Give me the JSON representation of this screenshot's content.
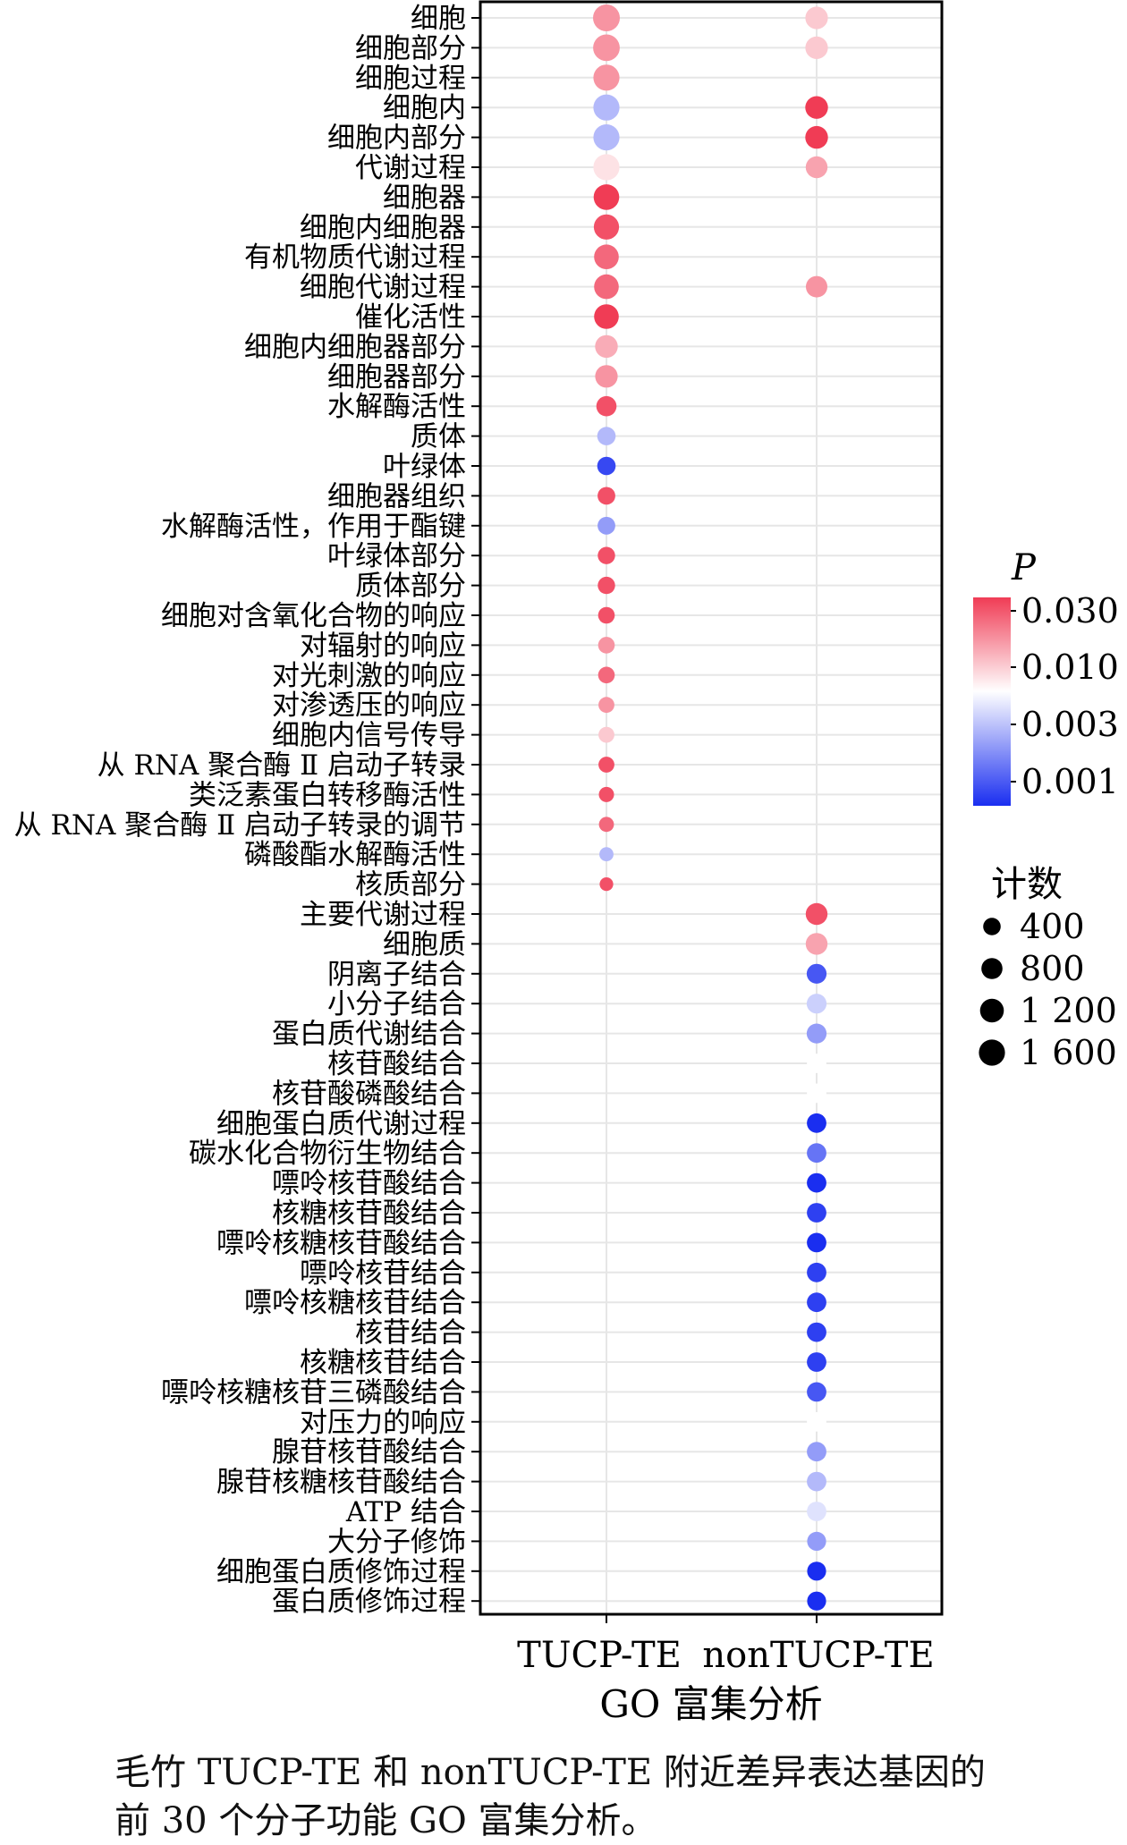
{
  "chart_data": {
    "type": "scatter",
    "title": "",
    "xlabel": "GO 富集分析",
    "ylabel": "",
    "x": [
      "TUCP-TE",
      "nonTUCP-TE"
    ],
    "categories": [
      "细胞",
      "细胞部分",
      "细胞过程",
      "细胞内",
      "细胞内部分",
      "代谢过程",
      "细胞器",
      "细胞内细胞器",
      "有机物质代谢过程",
      "细胞代谢过程",
      "催化活性",
      "细胞内细胞器部分",
      "细胞器部分",
      "水解酶活性",
      "质体",
      "叶绿体",
      "细胞器组织",
      "水解酶活性，作用于酯键",
      "叶绿体部分",
      "质体部分",
      "细胞对含氧化合物的响应",
      "对辐射的响应",
      "对光刺激的响应",
      "对渗透压的响应",
      "细胞内信号传导",
      "从 RNA 聚合酶 Ⅱ 启动子转录",
      "类泛素蛋白转移酶活性",
      "从 RNA 聚合酶 Ⅱ 启动子转录的调节",
      "磷酸酯水解酶活性",
      "核质部分",
      "主要代谢过程",
      "细胞质",
      "阴离子结合",
      "小分子结合",
      "蛋白质代谢结合",
      "核苷酸结合",
      "核苷酸磷酸结合",
      "细胞蛋白质代谢过程",
      "碳水化合物衍生物结合",
      "嘌呤核苷酸结合",
      "核糖核苷酸结合",
      "嘌呤核糖核苷酸结合",
      "嘌呤核苷结合",
      "嘌呤核糖核苷结合",
      "核苷结合",
      "核糖核苷结合",
      "嘌呤核糖核苷三磷酸结合",
      "对压力的响应",
      "腺苷核苷酸结合",
      "腺苷核糖核苷酸结合",
      "ATP 结合",
      "大分子修饰",
      "细胞蛋白质修饰过程",
      "蛋白质修饰过程"
    ],
    "series": [
      {
        "name": "TUCP-TE",
        "counts": [
          1750,
          1700,
          1600,
          1600,
          1600,
          1600,
          1500,
          1450,
          1350,
          1350,
          1350,
          1050,
          1000,
          700,
          500,
          500,
          420,
          420,
          380,
          380,
          320,
          320,
          320,
          260,
          260,
          260,
          220,
          200,
          150,
          120,
          null,
          null,
          null,
          null,
          null,
          null,
          null,
          null,
          null,
          null,
          null,
          null,
          null,
          null,
          null,
          null,
          null,
          null,
          null,
          null,
          null,
          null,
          null,
          null
        ],
        "p": [
          0.018,
          0.018,
          0.018,
          0.004,
          0.004,
          0.01,
          0.035,
          0.03,
          0.025,
          0.025,
          0.035,
          0.015,
          0.018,
          0.03,
          0.004,
          0.0013,
          0.03,
          0.003,
          0.03,
          0.03,
          0.03,
          0.018,
          0.025,
          0.018,
          0.012,
          0.03,
          0.03,
          0.025,
          0.004,
          0.03,
          null,
          null,
          null,
          null,
          null,
          null,
          null,
          null,
          null,
          null,
          null,
          null,
          null,
          null,
          null,
          null,
          null,
          null,
          null,
          null,
          null,
          null,
          null,
          null
        ]
      },
      {
        "name": "nonTUCP-TE",
        "counts": [
          1000,
          1000,
          null,
          1050,
          1050,
          900,
          null,
          null,
          null,
          850,
          null,
          null,
          null,
          null,
          null,
          null,
          null,
          null,
          null,
          null,
          null,
          null,
          null,
          null,
          null,
          null,
          null,
          null,
          null,
          null,
          900,
          900,
          650,
          650,
          650,
          600,
          600,
          600,
          600,
          600,
          600,
          600,
          600,
          600,
          600,
          600,
          600,
          600,
          600,
          600,
          600,
          550,
          550,
          550
        ],
        "p": [
          0.012,
          0.012,
          null,
          0.035,
          0.035,
          0.016,
          null,
          null,
          null,
          0.018,
          null,
          null,
          null,
          null,
          null,
          null,
          null,
          null,
          null,
          null,
          null,
          null,
          null,
          null,
          null,
          null,
          null,
          null,
          null,
          null,
          0.03,
          0.016,
          0.0015,
          0.005,
          0.003,
          0.008,
          0.008,
          0.001,
          0.002,
          0.001,
          0.0012,
          0.001,
          0.0012,
          0.0012,
          0.0012,
          0.0012,
          0.0015,
          0.008,
          0.003,
          0.004,
          0.006,
          0.003,
          0.001,
          0.0009
        ]
      }
    ],
    "colorbar": {
      "title": "P",
      "ticks": [
        "0.030",
        "0.010",
        "0.003",
        "0.001"
      ],
      "colors": [
        "#f03c55",
        "#ffffff",
        "#1a2ef0"
      ]
    },
    "size_legend": {
      "title": "计数",
      "labels": [
        "400",
        "800",
        "1 200",
        "1 600"
      ],
      "values": [
        400,
        800,
        1200,
        1600
      ]
    },
    "grid": true
  },
  "caption": {
    "line1": "毛竹 TUCP-TE 和 nonTUCP-TE 附近差异表达基因的",
    "line2": "前 30 个分子功能 GO 富集分析。"
  }
}
